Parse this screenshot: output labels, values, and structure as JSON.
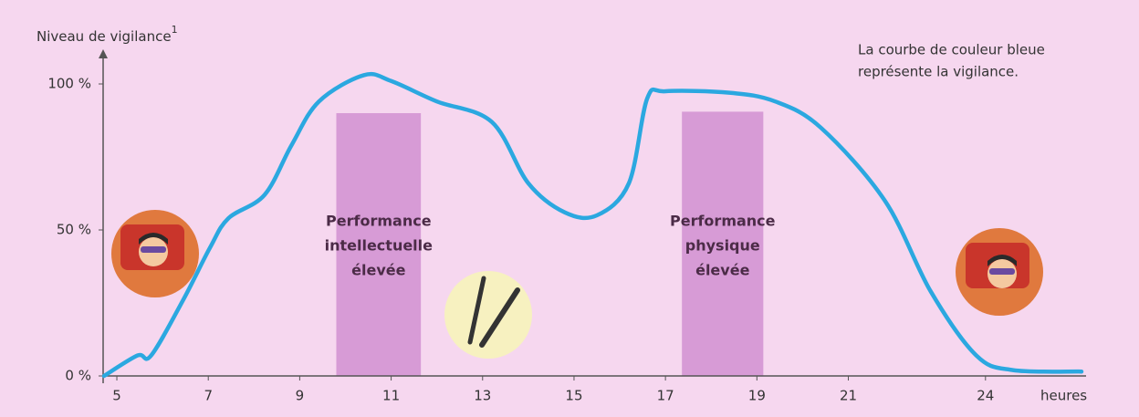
{
  "chart_data": {
    "type": "line",
    "y_label": "Niveau de vigilance",
    "y_label_sup": "1",
    "x_label": "heures",
    "annotation": [
      "La courbe de couleur bleue",
      "représente la vigilance."
    ],
    "xlim": [
      4.7,
      26.2
    ],
    "ylim": [
      0,
      110
    ],
    "xticks": [
      5,
      7,
      9,
      11,
      13,
      15,
      17,
      19,
      21,
      24
    ],
    "yticks": [
      {
        "value": 0,
        "label": "0 %"
      },
      {
        "value": 50,
        "label": "50 %"
      },
      {
        "value": 100,
        "label": "100 %"
      }
    ],
    "series": [
      {
        "color": "#2ba8e0",
        "x": [
          4.72,
          5.45,
          5.75,
          6.45,
          7.04,
          7.44,
          8.23,
          8.82,
          9.42,
          10.4,
          11.0,
          12.0,
          13.2,
          14.0,
          14.8,
          15.5,
          16.2,
          16.6,
          17.0,
          18.4,
          19.4,
          20.4,
          21.8,
          22.8,
          23.8,
          24.6,
          26.1
        ],
        "values": [
          0,
          7,
          7,
          26,
          44,
          54,
          62,
          79,
          94,
          103,
          101,
          94,
          87,
          66,
          56,
          55,
          66,
          95,
          97.5,
          97,
          94,
          85,
          60,
          29,
          7,
          2,
          1.5
        ]
      }
    ],
    "bands": [
      {
        "x": [
          9.8,
          11.65
        ],
        "top": 90,
        "label": [
          "Performance",
          "intellectuelle",
          "élevée"
        ]
      },
      {
        "x": [
          17.36,
          19.14
        ],
        "top": 90.5,
        "label": [
          "Performance",
          "physique",
          "élevée"
        ]
      }
    ],
    "band_color": "#d79bd6"
  }
}
